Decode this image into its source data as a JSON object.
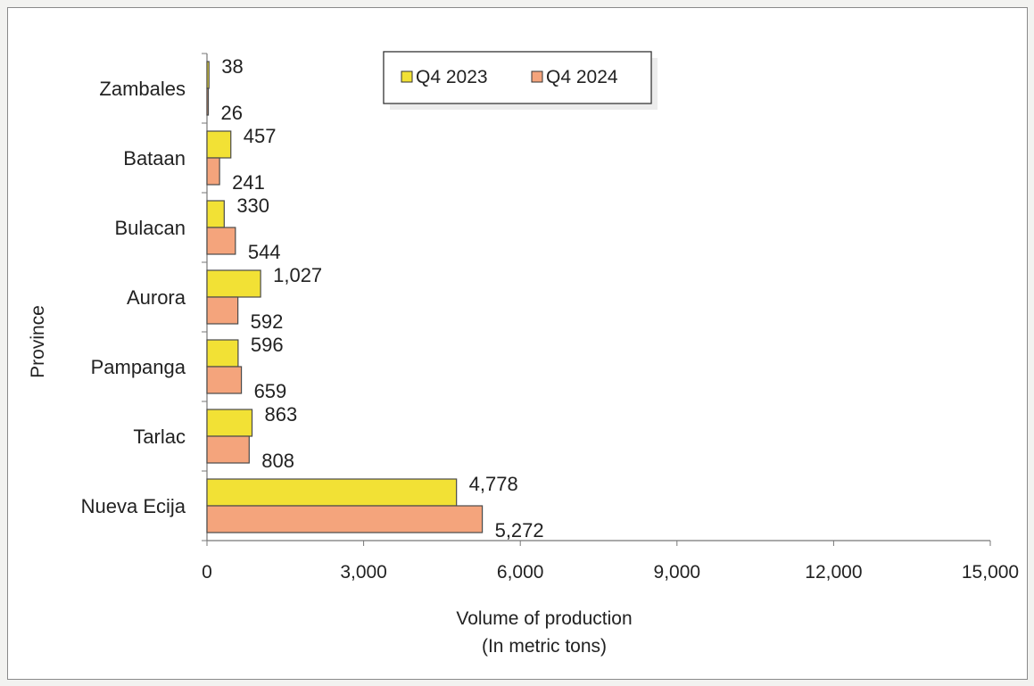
{
  "chart_data": {
    "type": "bar",
    "orientation": "horizontal",
    "categories": [
      "Zambales",
      "Bataan",
      "Bulacan",
      "Aurora",
      "Pampanga",
      "Tarlac",
      "Nueva Ecija"
    ],
    "series": [
      {
        "name": "Q4 2023",
        "color": "#f2e135",
        "values": [
          38,
          457,
          330,
          1027,
          596,
          863,
          4778
        ],
        "labels": [
          "38",
          "457",
          "330",
          "1,027",
          "596",
          "863",
          "4,778"
        ]
      },
      {
        "name": "Q4 2024",
        "color": "#f4a47c",
        "values": [
          26,
          241,
          544,
          592,
          659,
          808,
          5272
        ],
        "labels": [
          "26",
          "241",
          "544",
          "592",
          "659",
          "808",
          "5,272"
        ]
      }
    ],
    "ylabel": "Province",
    "xlabel_lines": [
      "Volume of production",
      "(In metric tons)"
    ],
    "xlim": [
      0,
      15000
    ],
    "xticks": [
      0,
      3000,
      6000,
      9000,
      12000,
      15000
    ],
    "xtick_labels": [
      "0",
      "3,000",
      "6,000",
      "9,000",
      "12,000",
      "15,000"
    ],
    "grid": false,
    "legend_position": "top"
  }
}
